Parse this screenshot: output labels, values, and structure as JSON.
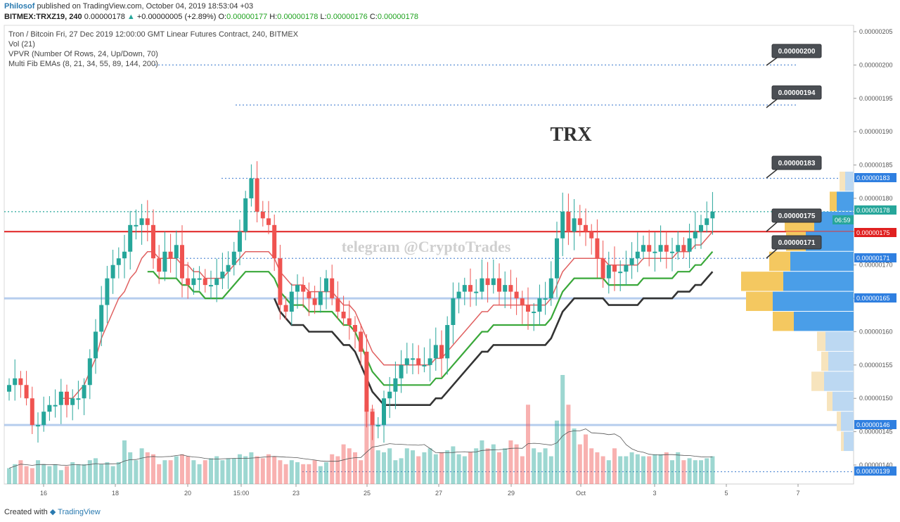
{
  "header": {
    "author": "Philosof",
    "published_text": "published on TradingView.com, October 04, 2019 18:53:04 +03",
    "symbol": "BITMEX:TRXZ19, 240",
    "last_price": "0.00000178",
    "change_text": "+0.00000005 (+2.89%)",
    "o_label": "O:",
    "o_value": "0.00000177",
    "h_label": "H:",
    "h_value": "0.00000178",
    "l_label": "L:",
    "l_value": "0.00000176",
    "c_label": "C:",
    "c_value": "0.00000178"
  },
  "legend": {
    "line1": "Tron / Bitcoin Fri, 27 Dec 2019 12:00:00 GMT Linear Futures Contract, 240, BITMEX",
    "line2": "Vol (21)",
    "line3": "VPVR (Number Of Rows, 24, Up/Down, 70)",
    "line4": "Multi Fib EMAs (8, 21, 34, 55, 89, 144, 200)"
  },
  "watermark": "telegram @CryptoTrades",
  "big_label": "TRX",
  "footer": {
    "created_with": "Created with",
    "brand": "TradingView"
  },
  "chart_data": {
    "type": "candlestick",
    "price_axis_ticks": [
      "0.00000205",
      "0.00000200",
      "0.00000195",
      "0.00000190",
      "0.00000185",
      "0.00000180",
      "0.00000175",
      "0.00000170",
      "0.00000165",
      "0.00000160",
      "0.00000155",
      "0.00000150",
      "0.00000145",
      "0.00000140"
    ],
    "ylim": [
      1.36e-06,
      2.06e-06
    ],
    "date_axis_ticks": [
      "16",
      "18",
      "20",
      "15:00",
      "23",
      "25",
      "27",
      "29",
      "Oct",
      "3",
      "5",
      "7"
    ],
    "price_badges": [
      {
        "value": "0.00000183",
        "color": "#2f7fe0"
      },
      {
        "value": "0.00000178",
        "color": "#26a69a"
      },
      {
        "value": "06:59",
        "color": "#26a69a"
      },
      {
        "value": "0.00000175",
        "color": "#e02020"
      },
      {
        "value": "0.00000171",
        "color": "#2f7fe0"
      },
      {
        "value": "0.00000165",
        "color": "#2f7fe0"
      },
      {
        "value": "0.00000146",
        "color": "#2f7fe0"
      },
      {
        "value": "0.00000139",
        "color": "#2f7fe0"
      }
    ],
    "callouts": [
      "0.00000200",
      "0.00000194",
      "0.00000183",
      "0.00000175",
      "0.00000171"
    ],
    "horizontal_levels": [
      {
        "value": 2e-06,
        "style": "dotted",
        "color": "#5b8fd6"
      },
      {
        "value": 1.94e-06,
        "style": "dotted",
        "color": "#5b8fd6"
      },
      {
        "value": 1.83e-06,
        "style": "dotted",
        "color": "#5b8fd6"
      },
      {
        "value": 1.78e-06,
        "style": "dotted",
        "color": "#26a69a"
      },
      {
        "value": 1.75e-06,
        "style": "solid",
        "color": "#e02020"
      },
      {
        "value": 1.71e-06,
        "style": "dotted",
        "color": "#5b8fd6"
      },
      {
        "value": 1.65e-06,
        "style": "solid",
        "color": "#9ebce8"
      },
      {
        "value": 1.46e-06,
        "style": "solid",
        "color": "#9ebce8"
      },
      {
        "value": 1.39e-06,
        "style": "dotted",
        "color": "#5b8fd6"
      }
    ],
    "candles_close": [
      152,
      153,
      152,
      150,
      146,
      146,
      148,
      149,
      149,
      151,
      149,
      150,
      150,
      152,
      156,
      160,
      164,
      168,
      170,
      171,
      172,
      176,
      176,
      177,
      176,
      171,
      169,
      172,
      171,
      173,
      168,
      167,
      168,
      168,
      167,
      167,
      168,
      169,
      170,
      172,
      175,
      180,
      183,
      178,
      177,
      176,
      171,
      164,
      163,
      166,
      167,
      166,
      165,
      164,
      166,
      168,
      165,
      163,
      162,
      161,
      160,
      157,
      148,
      146,
      146,
      150,
      151,
      153,
      155,
      156,
      156,
      155,
      155,
      156,
      158,
      156,
      161,
      165,
      166,
      167,
      166,
      166,
      168,
      167,
      168,
      166,
      167,
      166,
      165,
      164,
      163,
      163,
      165,
      165,
      168,
      174,
      178,
      175,
      177,
      176,
      175,
      174,
      171,
      168,
      170,
      169,
      169,
      170,
      171,
      172,
      173,
      172,
      172,
      173,
      172,
      172,
      173,
      172,
      174,
      175,
      176,
      177,
      178
    ],
    "volume_pct": [
      8,
      10,
      12,
      9,
      8,
      12,
      10,
      9,
      10,
      7,
      9,
      11,
      10,
      10,
      12,
      13,
      10,
      11,
      9,
      11,
      22,
      16,
      12,
      18,
      16,
      15,
      10,
      12,
      12,
      14,
      15,
      14,
      12,
      10,
      12,
      13,
      14,
      12,
      13,
      13,
      15,
      14,
      16,
      14,
      13,
      15,
      14,
      12,
      10,
      12,
      11,
      10,
      10,
      12,
      9,
      11,
      15,
      14,
      20,
      18,
      16,
      12,
      40,
      38,
      17,
      16,
      18,
      12,
      13,
      18,
      17,
      14,
      16,
      18,
      15,
      16,
      17,
      19,
      15,
      14,
      16,
      18,
      22,
      18,
      20,
      16,
      18,
      22,
      20,
      14,
      40,
      18,
      16,
      18,
      14,
      32,
      55,
      40,
      28,
      20,
      25,
      18,
      16,
      14,
      12,
      18,
      14,
      14,
      16,
      15,
      14,
      14,
      15,
      15,
      16,
      12,
      16,
      12,
      13,
      12,
      12,
      13,
      14
    ],
    "ema_fast": [
      150,
      150,
      149,
      149,
      148,
      148,
      148,
      149,
      149,
      150,
      150,
      150,
      151,
      152,
      154,
      156,
      159,
      161,
      163,
      165,
      166,
      168,
      169,
      171,
      172,
      172,
      171,
      171,
      171,
      171,
      170,
      170,
      169,
      169,
      168,
      168,
      168,
      168,
      169,
      170,
      171,
      172,
      172,
      172,
      172,
      172,
      171,
      169,
      168,
      167,
      167,
      167,
      166,
      166,
      166,
      166,
      166,
      165,
      164,
      164,
      163,
      161,
      159,
      157,
      156,
      155,
      155,
      155,
      155,
      155,
      155,
      155,
      155,
      155,
      156,
      156,
      157,
      158,
      159,
      160,
      161,
      162,
      163,
      163,
      164,
      164,
      164,
      164,
      164,
      164,
      164,
      164,
      164,
      164,
      165,
      167,
      169,
      170,
      171,
      171,
      171,
      171,
      171,
      171,
      170,
      170,
      170,
      170,
      170,
      170,
      171,
      171,
      171,
      171,
      171,
      171,
      172,
      172,
      172,
      173,
      173,
      174,
      175
    ]
  }
}
